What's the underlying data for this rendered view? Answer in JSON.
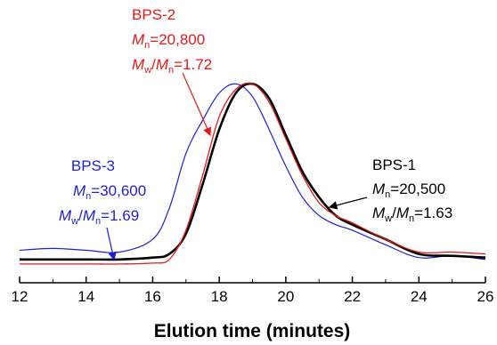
{
  "chart_data": {
    "type": "line",
    "title": "",
    "xlabel": "Elution time (minutes)",
    "ylabel": "",
    "xlim": [
      12,
      26
    ],
    "ylim": [
      0,
      1.05
    ],
    "xticks": [
      "12",
      "14",
      "16",
      "18",
      "20",
      "22",
      "24",
      "26"
    ],
    "grid": false,
    "legend": "none",
    "series": [
      {
        "name": "BPS-1",
        "color": "#000000",
        "x": [
          12,
          14,
          15,
          16,
          16.5,
          17,
          17.5,
          18,
          18.5,
          19,
          19.5,
          20,
          20.5,
          21,
          21.5,
          22,
          23,
          24,
          25,
          26
        ],
        "y": [
          0.04,
          0.04,
          0.04,
          0.05,
          0.07,
          0.18,
          0.45,
          0.75,
          0.95,
          1.0,
          0.92,
          0.72,
          0.52,
          0.38,
          0.28,
          0.23,
          0.15,
          0.07,
          0.06,
          0.05
        ]
      },
      {
        "name": "BPS-2",
        "color": "#e31a1c",
        "x": [
          12,
          14,
          15,
          16,
          16.5,
          17,
          17.5,
          18,
          18.5,
          19,
          19.5,
          20,
          20.5,
          21,
          21.5,
          22,
          23,
          24,
          25,
          26
        ],
        "y": [
          0.015,
          0.015,
          0.015,
          0.02,
          0.04,
          0.2,
          0.5,
          0.82,
          0.97,
          1.0,
          0.9,
          0.7,
          0.5,
          0.35,
          0.28,
          0.24,
          0.15,
          0.08,
          0.08,
          0.07
        ]
      },
      {
        "name": "BPS-3",
        "color": "#1f1fd1",
        "x": [
          12,
          13,
          14,
          15,
          16,
          16.5,
          17,
          17.5,
          18,
          18.5,
          19,
          19.5,
          20,
          20.5,
          21,
          21.5,
          22,
          23,
          24,
          25,
          26
        ],
        "y": [
          0.09,
          0.1,
          0.09,
          0.08,
          0.15,
          0.32,
          0.62,
          0.8,
          0.95,
          1.0,
          0.93,
          0.75,
          0.55,
          0.38,
          0.28,
          0.23,
          0.2,
          0.12,
          0.05,
          0.06,
          0.04
        ]
      }
    ],
    "annotations": [
      {
        "id": "bps2",
        "color": "#e31a1c",
        "name": "BPS-2",
        "mn_label": "M",
        "mn_sub": "n",
        "mn_value": "=20,800",
        "pdi_m1": "M",
        "pdi_s1": "w",
        "pdi_slash": "/",
        "pdi_m2": "M",
        "pdi_s2": "n",
        "pdi_value": "=1.72"
      },
      {
        "id": "bps1",
        "color": "#000000",
        "name": "BPS-1",
        "mn_label": "M",
        "mn_sub": "n",
        "mn_value": "=20,500",
        "pdi_m1": "M",
        "pdi_s1": "w",
        "pdi_slash": "/",
        "pdi_m2": "M",
        "pdi_s2": "n",
        "pdi_value": "=1.63"
      },
      {
        "id": "bps3",
        "color": "#1f1fd1",
        "name": "BPS-3",
        "mn_label": "M",
        "mn_sub": "n",
        "mn_value": "=30,600",
        "pdi_m1": "M",
        "pdi_s1": "w",
        "pdi_slash": "/",
        "pdi_m2": "M",
        "pdi_s2": "n",
        "pdi_value": "=1.69"
      }
    ]
  }
}
